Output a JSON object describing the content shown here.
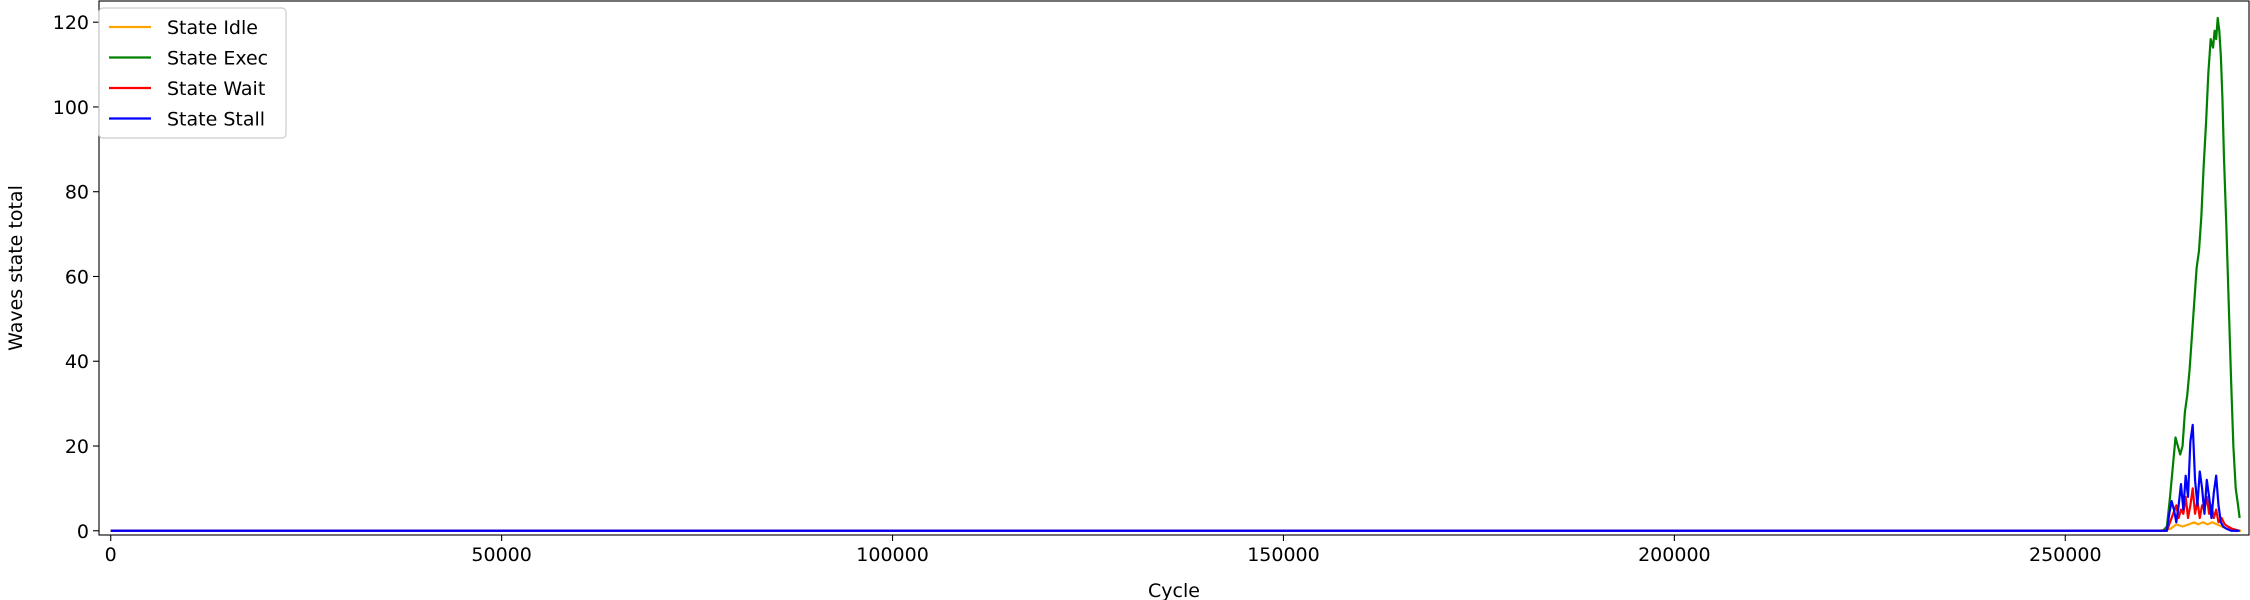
{
  "chart_data": {
    "type": "line",
    "title": "",
    "xlabel": "Cycle",
    "ylabel": "Waves state total",
    "xlim": [
      -1500,
      273500
    ],
    "ylim": [
      -1,
      125
    ],
    "xticks": [
      0,
      50000,
      100000,
      150000,
      200000,
      250000
    ],
    "xtick_labels": [
      "0",
      "50000",
      "100000",
      "150000",
      "200000",
      "250000"
    ],
    "yticks": [
      0,
      20,
      40,
      60,
      80,
      100,
      120
    ],
    "ytick_labels": [
      "0",
      "20",
      "40",
      "60",
      "80",
      "100",
      "120"
    ],
    "grid": false,
    "legend_position": "upper-left",
    "series": [
      {
        "name": "State Idle",
        "color": "#ffa500",
        "points": [
          [
            0,
            0
          ],
          [
            262000,
            0
          ],
          [
            263500,
            0.5
          ],
          [
            264200,
            1.5
          ],
          [
            265000,
            1
          ],
          [
            265800,
            1.5
          ],
          [
            266500,
            2
          ],
          [
            267000,
            1.5
          ],
          [
            267600,
            2
          ],
          [
            268200,
            1.5
          ],
          [
            268800,
            2
          ],
          [
            269400,
            1.5
          ],
          [
            270000,
            1
          ],
          [
            270600,
            0.5
          ],
          [
            271500,
            0
          ],
          [
            272500,
            0
          ]
        ]
      },
      {
        "name": "State Exec",
        "color": "#008000",
        "points": [
          [
            0,
            0
          ],
          [
            262500,
            0
          ],
          [
            263000,
            1
          ],
          [
            263400,
            8
          ],
          [
            263800,
            16
          ],
          [
            264100,
            22
          ],
          [
            264400,
            20
          ],
          [
            264700,
            18
          ],
          [
            265000,
            20
          ],
          [
            265300,
            28
          ],
          [
            265600,
            32
          ],
          [
            265900,
            38
          ],
          [
            266200,
            46
          ],
          [
            266500,
            54
          ],
          [
            266800,
            62
          ],
          [
            267100,
            66
          ],
          [
            267400,
            74
          ],
          [
            267700,
            86
          ],
          [
            268000,
            96
          ],
          [
            268300,
            108
          ],
          [
            268600,
            116
          ],
          [
            268900,
            114
          ],
          [
            269100,
            118
          ],
          [
            269300,
            116
          ],
          [
            269500,
            121
          ],
          [
            269700,
            118
          ],
          [
            269900,
            112
          ],
          [
            270100,
            102
          ],
          [
            270300,
            88
          ],
          [
            270600,
            72
          ],
          [
            270900,
            54
          ],
          [
            271200,
            36
          ],
          [
            271500,
            20
          ],
          [
            271800,
            10
          ],
          [
            272100,
            6
          ],
          [
            272300,
            3
          ]
        ]
      },
      {
        "name": "State Wait",
        "color": "#ff0000",
        "points": [
          [
            0,
            0
          ],
          [
            263000,
            0
          ],
          [
            263400,
            2
          ],
          [
            263800,
            4
          ],
          [
            264200,
            6
          ],
          [
            264500,
            3
          ],
          [
            264800,
            5
          ],
          [
            265100,
            4
          ],
          [
            265400,
            8
          ],
          [
            265700,
            3
          ],
          [
            266000,
            6
          ],
          [
            266300,
            10
          ],
          [
            266600,
            4
          ],
          [
            266900,
            7
          ],
          [
            267200,
            3
          ],
          [
            267500,
            6
          ],
          [
            267800,
            5
          ],
          [
            268100,
            8
          ],
          [
            268400,
            4
          ],
          [
            268700,
            6
          ],
          [
            269000,
            3
          ],
          [
            269300,
            5
          ],
          [
            269600,
            2
          ],
          [
            270000,
            3
          ],
          [
            270400,
            1.5
          ],
          [
            270800,
            1
          ],
          [
            271300,
            0.5
          ],
          [
            272300,
            0
          ]
        ]
      },
      {
        "name": "State Stall",
        "color": "#0000ff",
        "points": [
          [
            0,
            0
          ],
          [
            263000,
            0
          ],
          [
            263300,
            4
          ],
          [
            263600,
            7
          ],
          [
            263900,
            5
          ],
          [
            264200,
            2
          ],
          [
            264500,
            6
          ],
          [
            264800,
            11
          ],
          [
            265100,
            5
          ],
          [
            265400,
            13
          ],
          [
            265700,
            8
          ],
          [
            266000,
            21
          ],
          [
            266300,
            25
          ],
          [
            266600,
            12
          ],
          [
            266900,
            6
          ],
          [
            267200,
            14
          ],
          [
            267500,
            10
          ],
          [
            267800,
            4
          ],
          [
            268100,
            12
          ],
          [
            268400,
            8
          ],
          [
            268700,
            3
          ],
          [
            269000,
            9
          ],
          [
            269300,
            13
          ],
          [
            269600,
            6
          ],
          [
            269900,
            2
          ],
          [
            270200,
            1
          ],
          [
            270600,
            0.5
          ],
          [
            271200,
            0
          ],
          [
            272300,
            0
          ]
        ]
      }
    ]
  }
}
